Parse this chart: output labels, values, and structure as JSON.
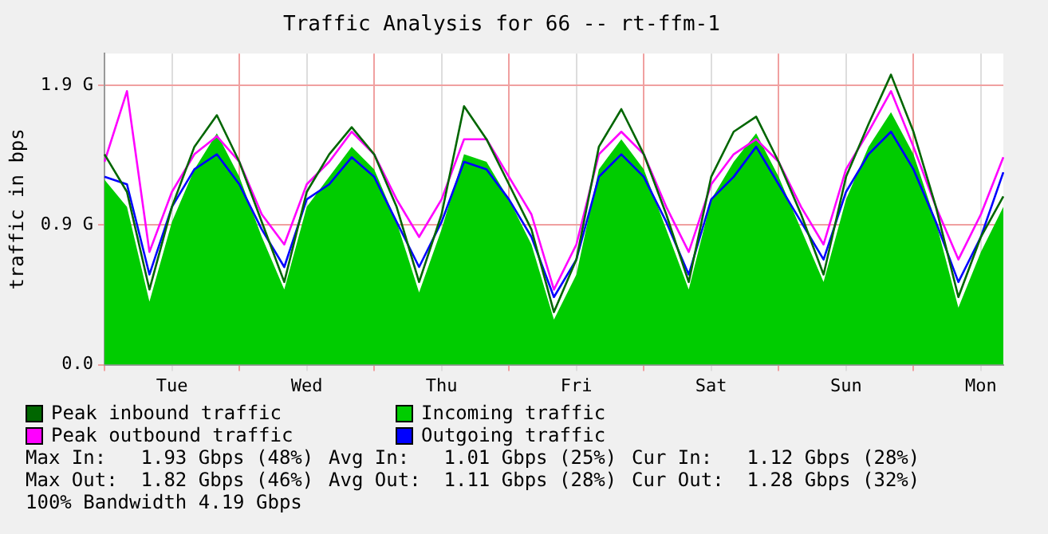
{
  "chart_data": {
    "type": "line",
    "title": "Traffic Analysis for 66 -- rt-ffm-1",
    "ylabel": "traffic in bps",
    "categories": [
      null,
      null,
      null,
      "Tue",
      null,
      null,
      null,
      null,
      null,
      "Wed",
      null,
      null,
      null,
      null,
      null,
      "Thu",
      null,
      null,
      null,
      null,
      null,
      "Fri",
      null,
      null,
      null,
      null,
      null,
      "Sat",
      null,
      null,
      null,
      null,
      null,
      "Sun",
      null,
      null,
      null,
      null,
      null,
      "Mon",
      null
    ],
    "series": [
      {
        "name": "Peak inbound traffic",
        "color": "#006600",
        "values": [
          1.4,
          1.15,
          0.5,
          1.05,
          1.45,
          1.66,
          1.35,
          0.95,
          0.55,
          1.15,
          1.4,
          1.58,
          1.4,
          1.05,
          0.55,
          1.0,
          1.72,
          1.5,
          1.2,
          0.9,
          0.35,
          0.7,
          1.45,
          1.7,
          1.4,
          1.0,
          0.55,
          1.25,
          1.55,
          1.65,
          1.35,
          1.0,
          0.6,
          1.25,
          1.6,
          1.93,
          1.55,
          1.05,
          0.45,
          0.85,
          1.12
        ]
      },
      {
        "name": "Incoming traffic",
        "type": "area",
        "color": "#00cc00",
        "values": [
          1.23,
          1.05,
          0.42,
          0.95,
          1.3,
          1.54,
          1.25,
          0.85,
          0.5,
          1.05,
          1.25,
          1.45,
          1.3,
          0.95,
          0.48,
          0.9,
          1.4,
          1.35,
          1.1,
          0.8,
          0.3,
          0.6,
          1.3,
          1.5,
          1.3,
          0.9,
          0.5,
          1.1,
          1.35,
          1.54,
          1.25,
          0.9,
          0.55,
          1.1,
          1.45,
          1.68,
          1.4,
          0.95,
          0.38,
          0.75,
          1.05
        ]
      },
      {
        "name": "Peak outbound traffic",
        "color": "#ff00ff",
        "values": [
          1.35,
          1.82,
          0.75,
          1.15,
          1.4,
          1.52,
          1.35,
          1.0,
          0.8,
          1.2,
          1.35,
          1.55,
          1.4,
          1.1,
          0.85,
          1.1,
          1.5,
          1.5,
          1.25,
          1.0,
          0.5,
          0.8,
          1.4,
          1.55,
          1.4,
          1.05,
          0.75,
          1.2,
          1.4,
          1.5,
          1.35,
          1.05,
          0.8,
          1.3,
          1.55,
          1.82,
          1.45,
          1.05,
          0.7,
          1.0,
          1.38
        ]
      },
      {
        "name": "Outgoing traffic",
        "color": "#0000ff",
        "values": [
          1.25,
          1.2,
          0.6,
          1.05,
          1.3,
          1.4,
          1.2,
          0.9,
          0.65,
          1.1,
          1.2,
          1.38,
          1.25,
          0.95,
          0.65,
          0.95,
          1.35,
          1.3,
          1.1,
          0.85,
          0.45,
          0.7,
          1.25,
          1.4,
          1.25,
          0.95,
          0.6,
          1.1,
          1.25,
          1.45,
          1.2,
          0.95,
          0.7,
          1.15,
          1.4,
          1.55,
          1.3,
          0.95,
          0.55,
          0.85,
          1.28
        ]
      }
    ],
    "ylim": [
      0,
      2.07
    ],
    "yticks": [
      {
        "value": 0,
        "label": "0.0"
      },
      {
        "value": 0.93,
        "label": "0.9 G"
      },
      {
        "value": 1.86,
        "label": "1.9 G"
      }
    ],
    "grid": true,
    "legend": "bottom",
    "marker": "none",
    "line_style": "solid",
    "annotations": [
      "Max In:   1.93 Gbps (48%)",
      "Avg In:   1.01 Gbps (25%)",
      "Cur In:   1.12 Gbps (28%)",
      "Max Out:  1.82 Gbps (46%)",
      "Avg Out:  1.11 Gbps (28%)",
      "Cur Out:  1.28 Gbps (32%)",
      "100% Bandwidth 4.19 Gbps"
    ]
  }
}
